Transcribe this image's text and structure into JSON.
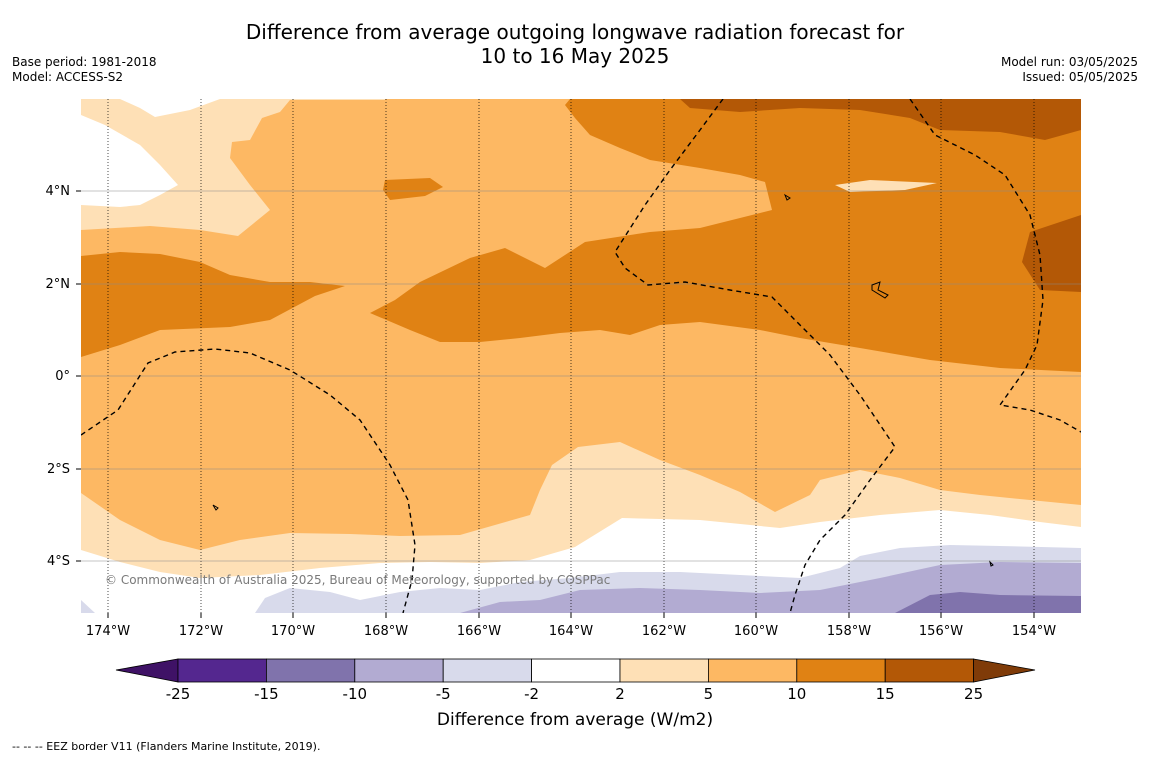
{
  "header": {
    "title_line1": "Difference from average outgoing longwave radiation forecast for",
    "title_line2": "10 to 16 May 2025",
    "base_period": "Base period: 1981-2018",
    "model": "Model: ACCESS-S2",
    "model_run": "Model run: 03/05/2025",
    "issued": "Issued: 05/05/2025"
  },
  "map": {
    "lon_ticks": [
      "174°W",
      "172°W",
      "170°W",
      "168°W",
      "166°W",
      "164°W",
      "162°W",
      "160°W",
      "158°W",
      "156°W",
      "154°W"
    ],
    "lat_ticks": [
      "4°N",
      "2°N",
      "0°",
      "2°S",
      "4°S"
    ],
    "copyright": "© Commonwealth of Australia 2025, Bureau of Meteorology, supported by COSPPac"
  },
  "colorbar": {
    "labels": [
      "-25",
      "-15",
      "-10",
      "-5",
      "-2",
      "2",
      "5",
      "10",
      "15",
      "25"
    ],
    "colors": [
      "#3f1266",
      "#54278f",
      "#8073ac",
      "#b2abd2",
      "#d8daeb",
      "#ffffff",
      "#fee0b6",
      "#fdb863",
      "#e08214",
      "#b35806",
      "#7f3b08"
    ],
    "title": "Difference from average (W/m2)"
  },
  "footnote": "-- -- -- EEZ border V11 (Flanders Marine Institute, 2019)."
}
